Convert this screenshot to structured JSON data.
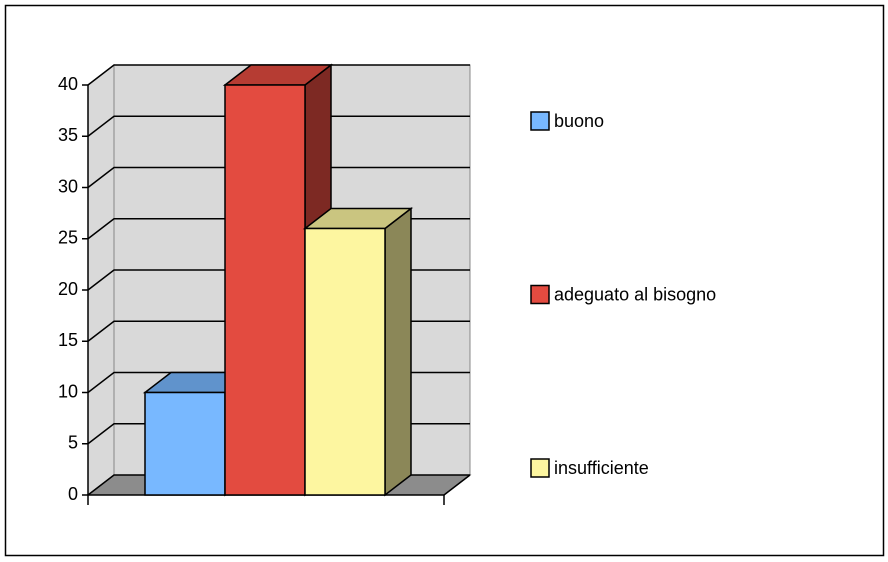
{
  "chart_data": {
    "type": "bar3d",
    "categories": [
      null
    ],
    "series": [
      {
        "name": "buono",
        "color": "#78b8ff",
        "values": [
          10
        ]
      },
      {
        "name": "adeguato al bisogno",
        "color": "#e34b40",
        "values": [
          40
        ]
      },
      {
        "name": "insufficiente",
        "color": "#fdf6a0",
        "values": [
          26
        ]
      }
    ],
    "ylim": [
      0,
      40
    ],
    "yticks": [
      0,
      5,
      10,
      15,
      20,
      25,
      30,
      35,
      40
    ],
    "grid": true,
    "legend": "right"
  }
}
